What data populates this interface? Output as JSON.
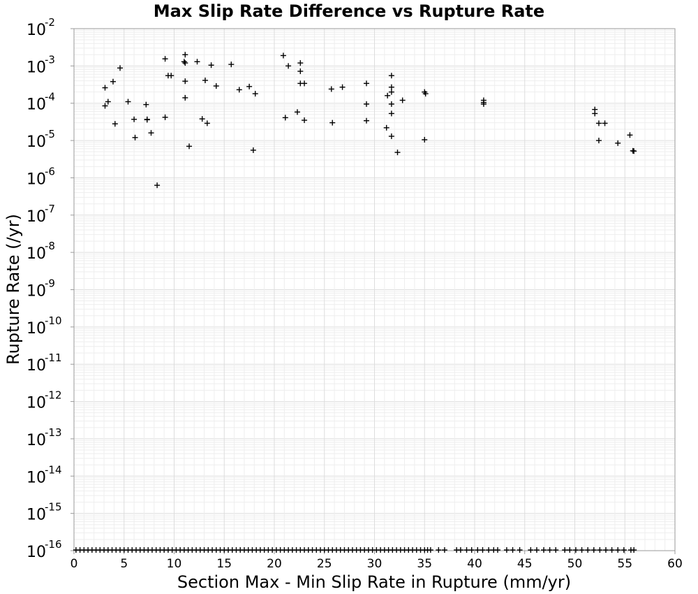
{
  "chart_data": {
    "type": "scatter",
    "title": "Max Slip Rate Difference vs Rupture Rate",
    "xlabel": "Section Max - Min Slip Rate in Rupture (mm/yr)",
    "ylabel": "Rupture Rate (/yr)",
    "xlim": [
      0,
      60
    ],
    "ylim": [
      1e-16,
      0.01
    ],
    "yscale": "log",
    "grid": true,
    "marker": "+",
    "marker_color": "#000000",
    "x_ticks": [
      "0",
      "5",
      "10",
      "15",
      "20",
      "25",
      "30",
      "35",
      "40",
      "45",
      "50",
      "55",
      "60"
    ],
    "y_ticks": [
      {
        "base": "10",
        "exp": "-2"
      },
      {
        "base": "10",
        "exp": "-3"
      },
      {
        "base": "10",
        "exp": "-4"
      },
      {
        "base": "10",
        "exp": "-5"
      },
      {
        "base": "10",
        "exp": "-6"
      },
      {
        "base": "10",
        "exp": "-7"
      },
      {
        "base": "10",
        "exp": "-8"
      },
      {
        "base": "10",
        "exp": "-9"
      },
      {
        "base": "10",
        "exp": "-10"
      },
      {
        "base": "10",
        "exp": "-11"
      },
      {
        "base": "10",
        "exp": "-12"
      },
      {
        "base": "10",
        "exp": "-13"
      },
      {
        "base": "10",
        "exp": "-14"
      },
      {
        "base": "10",
        "exp": "-15"
      },
      {
        "base": "10",
        "exp": "-16"
      }
    ],
    "points": [
      [
        3.1,
        0.00026
      ],
      [
        3.1,
        8.5e-05
      ],
      [
        3.4,
        0.00011
      ],
      [
        3.9,
        0.00038
      ],
      [
        4.1,
        2.8e-05
      ],
      [
        4.6,
        0.00088
      ],
      [
        5.4,
        0.00011
      ],
      [
        6.0,
        3.7e-05
      ],
      [
        6.1,
        1.2e-05
      ],
      [
        7.2,
        9.2e-05
      ],
      [
        7.3,
        3.7e-05
      ],
      [
        7.3,
        3.6e-05
      ],
      [
        7.7,
        1.6e-05
      ],
      [
        8.3,
        6.3e-07
      ],
      [
        9.1,
        0.00155
      ],
      [
        9.1,
        4.2e-05
      ],
      [
        9.4,
        0.00055
      ],
      [
        9.7,
        0.00055
      ],
      [
        11.0,
        0.0013
      ],
      [
        11.1,
        0.002
      ],
      [
        11.1,
        0.0012
      ],
      [
        11.1,
        0.00039
      ],
      [
        11.1,
        0.00014
      ],
      [
        11.5,
        7e-06
      ],
      [
        12.3,
        0.0013
      ],
      [
        12.8,
        3.8e-05
      ],
      [
        13.1,
        0.00041
      ],
      [
        13.3,
        2.9e-05
      ],
      [
        13.7,
        0.00105
      ],
      [
        14.2,
        0.00029
      ],
      [
        15.7,
        0.0011
      ],
      [
        16.5,
        0.00023
      ],
      [
        17.5,
        0.00028
      ],
      [
        17.9,
        5.5e-06
      ],
      [
        18.1,
        0.00018
      ],
      [
        20.9,
        0.0019
      ],
      [
        21.1,
        4.1e-05
      ],
      [
        21.4,
        0.001
      ],
      [
        22.3,
        5.8e-05
      ],
      [
        22.6,
        0.0012
      ],
      [
        22.6,
        0.00072
      ],
      [
        22.6,
        0.00034
      ],
      [
        23.0,
        0.00034
      ],
      [
        23.0,
        3.5e-05
      ],
      [
        25.7,
        0.00024
      ],
      [
        25.8,
        3e-05
      ],
      [
        26.8,
        0.00027
      ],
      [
        29.2,
        0.00034
      ],
      [
        29.2,
        9.5e-05
      ],
      [
        29.2,
        3.4e-05
      ],
      [
        31.2,
        2.2e-05
      ],
      [
        31.3,
        0.00016
      ],
      [
        31.7,
        0.00055
      ],
      [
        31.7,
        0.00027
      ],
      [
        31.7,
        0.0002
      ],
      [
        31.7,
        9.5e-05
      ],
      [
        31.7,
        5.3e-05
      ],
      [
        31.7,
        1.3e-05
      ],
      [
        32.3,
        4.8e-06
      ],
      [
        32.8,
        0.00012
      ],
      [
        35.0,
        0.0002
      ],
      [
        35.1,
        0.00018
      ],
      [
        35.0,
        1.05e-05
      ],
      [
        40.9,
        0.00012
      ],
      [
        40.9,
        0.000105
      ],
      [
        40.9,
        9.5e-05
      ],
      [
        52.0,
        6.8e-05
      ],
      [
        52.0,
        5.3e-05
      ],
      [
        52.4,
        2.9e-05
      ],
      [
        52.4,
        1e-05
      ],
      [
        53.0,
        2.9e-05
      ],
      [
        54.3,
        8.5e-06
      ],
      [
        55.5,
        1.4e-05
      ],
      [
        55.8,
        5.3e-06
      ],
      [
        55.9,
        5.2e-06
      ]
    ],
    "baseline_points_x": [
      0.2,
      0.6,
      1.0,
      1.4,
      1.8,
      2.2,
      2.6,
      3.0,
      3.4,
      3.8,
      4.2,
      4.6,
      5.0,
      5.4,
      5.8,
      6.2,
      6.6,
      7.0,
      7.4,
      7.8,
      8.2,
      8.6,
      9.0,
      9.4,
      9.8,
      10.2,
      10.6,
      11.0,
      11.4,
      11.8,
      12.2,
      12.6,
      13.0,
      13.4,
      13.8,
      14.2,
      14.6,
      15.0,
      15.4,
      15.8,
      16.2,
      16.6,
      17.0,
      17.4,
      17.8,
      18.2,
      18.6,
      19.0,
      19.4,
      19.8,
      20.2,
      20.6,
      21.0,
      21.4,
      21.8,
      22.2,
      22.6,
      23.0,
      23.4,
      23.8,
      24.2,
      24.6,
      25.0,
      25.4,
      25.8,
      26.2,
      26.6,
      27.0,
      27.4,
      27.8,
      28.2,
      28.6,
      29.0,
      29.4,
      29.8,
      30.2,
      30.6,
      31.0,
      31.4,
      31.8,
      32.2,
      32.6,
      33.0,
      33.4,
      33.8,
      34.2,
      34.6,
      35.0,
      35.3,
      35.6,
      36.4,
      37.0,
      38.2,
      38.6,
      39.2,
      39.7,
      40.3,
      40.8,
      41.4,
      41.9,
      42.3,
      43.2,
      43.8,
      44.5,
      45.6,
      46.2,
      46.9,
      47.5,
      48.1,
      49.0,
      49.5,
      50.1,
      50.7,
      51.3,
      51.9,
      52.5,
      53.1,
      53.7,
      54.3,
      54.9,
      55.6,
      55.9
    ]
  }
}
